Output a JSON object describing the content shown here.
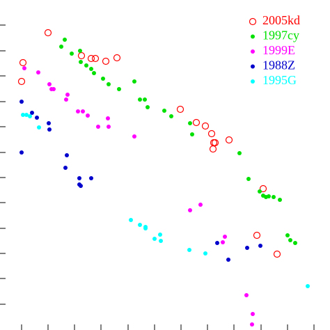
{
  "chart_data": {
    "type": "scatter",
    "xlim": [
      0,
      474
    ],
    "ylim": [
      474,
      0
    ],
    "xticks": [
      31,
      69,
      107,
      145,
      184,
      222,
      260,
      298,
      336,
      375,
      413,
      451
    ],
    "yticks": [
      36,
      73,
      109,
      146,
      182,
      219,
      255,
      291,
      328,
      364,
      400,
      437
    ],
    "legend": "upper right",
    "series": [
      {
        "name": "2005kd",
        "color": "#ff0000",
        "marker": "open",
        "x": [
          69,
          117,
          131,
          137,
          152,
          168,
          33,
          31,
          259,
          282,
          295,
          304,
          307,
          309,
          306,
          329,
          378,
          369,
          398
        ],
        "y": [
          47,
          80,
          84,
          84,
          88,
          83,
          90,
          117,
          157,
          176,
          181,
          192,
          205,
          205,
          214,
          201,
          271,
          338,
          365
        ]
      },
      {
        "name": "1997cy",
        "color": "#00e000",
        "marker": "filled",
        "x": [
          93,
          88,
          103,
          115,
          116,
          124,
          131,
          135,
          148,
          156,
          171,
          193,
          201,
          208,
          212,
          236,
          246,
          273,
          276,
          344,
          357,
          373,
          378,
          382,
          386,
          393,
          402,
          413,
          417,
          424
        ],
        "y": [
          57,
          67,
          77,
          73,
          89,
          94,
          99,
          105,
          113,
          121,
          128,
          117,
          143,
          143,
          154,
          159,
          167,
          177,
          193,
          220,
          257,
          275,
          281,
          283,
          282,
          283,
          287,
          338,
          345,
          349
        ]
      },
      {
        "name": "1999E",
        "color": "#ff00ff",
        "marker": "filled",
        "x": [
          35,
          55,
          71,
          74,
          77,
          97,
          95,
          112,
          119,
          126,
          141,
          156,
          155,
          193,
          288,
          273,
          323,
          320,
          354,
          363,
          362
        ],
        "y": [
          98,
          104,
          121,
          128,
          128,
          136,
          143,
          160,
          160,
          166,
          182,
          182,
          170,
          196,
          294,
          302,
          340,
          348,
          424,
          451,
          466
        ]
      },
      {
        "name": "1988Z",
        "color": "#0000cc",
        "marker": "filled",
        "x": [
          31,
          46,
          53,
          70,
          71,
          31,
          96,
          94,
          114,
          131,
          114,
          116,
          312,
          328,
          355,
          374
        ],
        "y": [
          146,
          162,
          169,
          177,
          186,
          219,
          223,
          241,
          256,
          256,
          265,
          267,
          349,
          373,
          356,
          353
        ]
      },
      {
        "name": "1995G",
        "color": "#00ffff",
        "marker": "filled",
        "x": [
          33,
          38,
          43,
          56,
          188,
          201,
          209,
          209,
          230,
          231,
          222,
          272,
          295,
          442
        ],
        "y": [
          165,
          165,
          167,
          183,
          316,
          323,
          326,
          328,
          337,
          346,
          343,
          359,
          364,
          411
        ]
      }
    ]
  }
}
